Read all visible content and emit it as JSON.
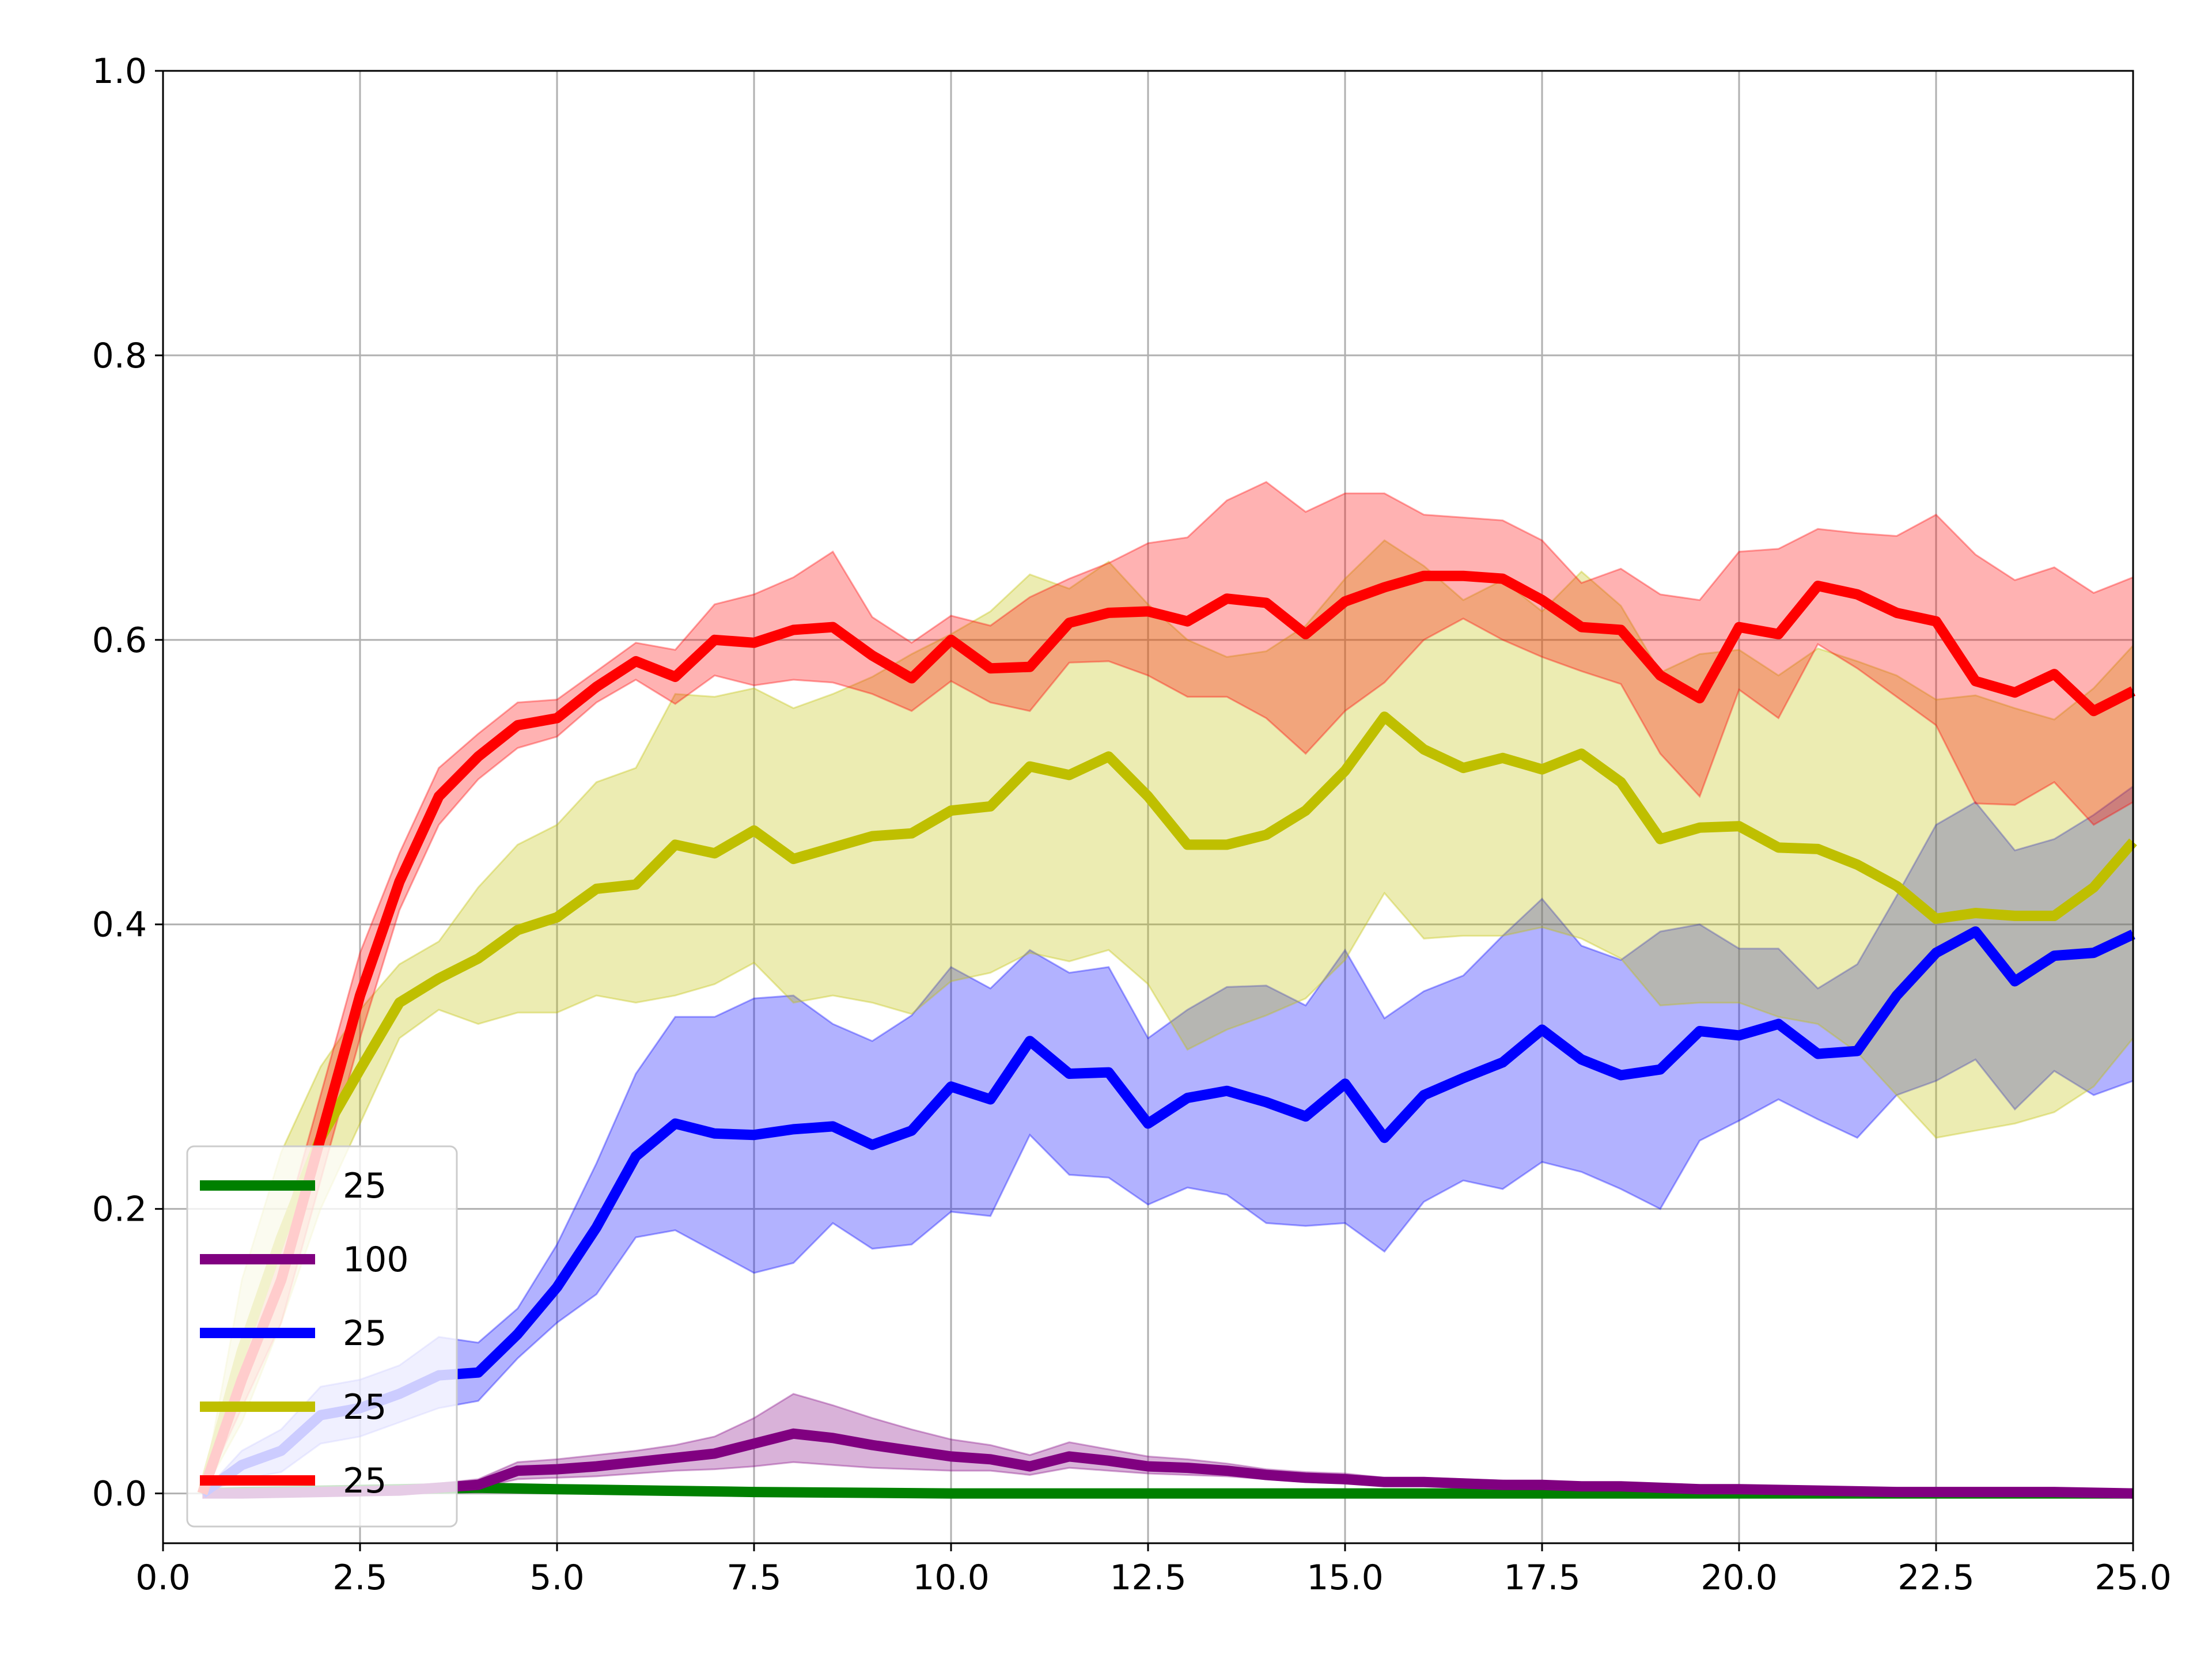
{
  "chart_data": {
    "type": "line",
    "title": "",
    "xlabel": "",
    "ylabel": "",
    "xlim": [
      0,
      25
    ],
    "ylim": [
      -0.035,
      1.0
    ],
    "xticks": [
      "0.0",
      "2.5",
      "5.0",
      "7.5",
      "10.0",
      "12.5",
      "15.0",
      "17.5",
      "20.0",
      "22.5",
      "25.0"
    ],
    "yticks": [
      "0.0",
      "0.2",
      "0.4",
      "0.6",
      "0.8",
      "1.0"
    ],
    "grid": true,
    "legend_position": "lower-left",
    "series": [
      {
        "name": "25",
        "color": "#008000",
        "x": [
          0.5,
          1,
          2,
          3,
          4,
          5,
          7.5,
          10,
          15,
          20,
          25
        ],
        "y": [
          0.0,
          0.001,
          0.002,
          0.003,
          0.004,
          0.003,
          0.001,
          0.0,
          0.0,
          0.0,
          0.0
        ],
        "lower": [
          0.0,
          0.0,
          0.001,
          0.002,
          0.003,
          0.002,
          0.0,
          0.0,
          0.0,
          0.0,
          0.0
        ],
        "upper": [
          0.001,
          0.002,
          0.003,
          0.004,
          0.005,
          0.004,
          0.002,
          0.001,
          0.0,
          0.0,
          0.0
        ]
      },
      {
        "name": "100",
        "color": "#800080",
        "x": [
          0.5,
          1,
          2,
          3,
          4,
          4.5,
          5,
          5.5,
          6,
          6.5,
          7,
          7.5,
          8,
          8.5,
          9,
          9.5,
          10,
          10.5,
          11,
          11.5,
          12,
          12.5,
          13,
          13.5,
          14,
          14.5,
          15,
          15.5,
          16,
          16.5,
          17,
          17.5,
          18,
          18.5,
          19,
          19.5,
          20,
          21,
          22,
          23,
          24,
          25
        ],
        "y": [
          0.0,
          0.0,
          0.001,
          0.002,
          0.006,
          0.016,
          0.017,
          0.019,
          0.022,
          0.025,
          0.028,
          0.035,
          0.042,
          0.039,
          0.034,
          0.03,
          0.026,
          0.024,
          0.019,
          0.026,
          0.023,
          0.019,
          0.018,
          0.016,
          0.013,
          0.011,
          0.01,
          0.008,
          0.008,
          0.007,
          0.006,
          0.006,
          0.005,
          0.005,
          0.004,
          0.003,
          0.003,
          0.002,
          0.001,
          0.001,
          0.001,
          0.0
        ],
        "lower": [
          0.0,
          0.0,
          0.0,
          0.001,
          0.004,
          0.01,
          0.011,
          0.012,
          0.014,
          0.016,
          0.017,
          0.019,
          0.022,
          0.02,
          0.018,
          0.017,
          0.016,
          0.016,
          0.013,
          0.018,
          0.016,
          0.014,
          0.013,
          0.012,
          0.01,
          0.008,
          0.007,
          0.006,
          0.006,
          0.005,
          0.005,
          0.005,
          0.004,
          0.004,
          0.003,
          0.002,
          0.002,
          0.001,
          0.001,
          0.0,
          0.0,
          0.0
        ],
        "upper": [
          0.001,
          0.001,
          0.002,
          0.004,
          0.01,
          0.022,
          0.024,
          0.027,
          0.03,
          0.034,
          0.04,
          0.053,
          0.07,
          0.062,
          0.053,
          0.045,
          0.038,
          0.034,
          0.027,
          0.036,
          0.031,
          0.026,
          0.024,
          0.021,
          0.017,
          0.015,
          0.014,
          0.011,
          0.011,
          0.01,
          0.009,
          0.008,
          0.007,
          0.007,
          0.006,
          0.005,
          0.004,
          0.003,
          0.002,
          0.002,
          0.001,
          0.001
        ]
      },
      {
        "name": "25",
        "color": "#0000ff",
        "x": [
          0.5,
          1,
          1.5,
          2,
          2.5,
          3,
          3.5,
          4,
          4.5,
          5,
          5.5,
          6,
          6.5,
          7,
          7.5,
          8,
          8.5,
          9,
          9.5,
          10,
          10.5,
          11,
          11.5,
          12,
          12.5,
          13,
          13.5,
          14,
          14.5,
          15,
          15.5,
          16,
          16.5,
          17,
          17.5,
          18,
          18.5,
          19,
          19.5,
          20,
          20.5,
          21,
          21.5,
          22,
          22.5,
          23,
          23.5,
          24,
          24.5,
          25
        ],
        "y": [
          0.0,
          0.02,
          0.03,
          0.055,
          0.06,
          0.07,
          0.083,
          0.085,
          0.112,
          0.145,
          0.187,
          0.237,
          0.26,
          0.253,
          0.252,
          0.256,
          0.258,
          0.245,
          0.255,
          0.286,
          0.277,
          0.318,
          0.295,
          0.296,
          0.26,
          0.278,
          0.283,
          0.275,
          0.265,
          0.288,
          0.25,
          0.28,
          0.292,
          0.303,
          0.326,
          0.305,
          0.294,
          0.298,
          0.325,
          0.322,
          0.33,
          0.309,
          0.311,
          0.35,
          0.38,
          0.395,
          0.36,
          0.378,
          0.38,
          0.393
        ],
        "lower": [
          0.0,
          0.01,
          0.015,
          0.035,
          0.04,
          0.05,
          0.06,
          0.065,
          0.095,
          0.12,
          0.14,
          0.18,
          0.185,
          0.17,
          0.155,
          0.162,
          0.19,
          0.172,
          0.175,
          0.198,
          0.195,
          0.252,
          0.224,
          0.222,
          0.203,
          0.215,
          0.21,
          0.19,
          0.188,
          0.19,
          0.17,
          0.205,
          0.22,
          0.214,
          0.233,
          0.226,
          0.214,
          0.2,
          0.248,
          0.262,
          0.277,
          0.263,
          0.25,
          0.28,
          0.29,
          0.305,
          0.27,
          0.297,
          0.28,
          0.29
        ],
        "upper": [
          0.0,
          0.03,
          0.045,
          0.075,
          0.08,
          0.09,
          0.11,
          0.106,
          0.13,
          0.175,
          0.232,
          0.295,
          0.335,
          0.335,
          0.348,
          0.35,
          0.33,
          0.318,
          0.336,
          0.37,
          0.355,
          0.382,
          0.366,
          0.37,
          0.32,
          0.34,
          0.356,
          0.357,
          0.343,
          0.382,
          0.334,
          0.353,
          0.364,
          0.392,
          0.418,
          0.385,
          0.375,
          0.395,
          0.4,
          0.383,
          0.383,
          0.355,
          0.372,
          0.42,
          0.47,
          0.486,
          0.452,
          0.46,
          0.477,
          0.497
        ]
      },
      {
        "name": "25",
        "color": "#bfbf00",
        "x": [
          0.5,
          1,
          1.5,
          2,
          2.5,
          3,
          3.5,
          4,
          4.5,
          5,
          5.5,
          6,
          6.5,
          7,
          7.5,
          8,
          8.5,
          9,
          9.5,
          10,
          10.5,
          11,
          11.5,
          12,
          12.5,
          13,
          13.5,
          14,
          14.5,
          15,
          15.5,
          16,
          16.5,
          17,
          17.5,
          18,
          18.5,
          19,
          19.5,
          20,
          20.5,
          21,
          21.5,
          22,
          22.5,
          23,
          23.5,
          24,
          24.5,
          25
        ],
        "y": [
          0.0,
          0.1,
          0.18,
          0.25,
          0.298,
          0.345,
          0.362,
          0.376,
          0.396,
          0.405,
          0.425,
          0.428,
          0.456,
          0.45,
          0.466,
          0.446,
          0.454,
          0.462,
          0.464,
          0.48,
          0.483,
          0.511,
          0.505,
          0.518,
          0.49,
          0.456,
          0.456,
          0.463,
          0.48,
          0.508,
          0.546,
          0.523,
          0.51,
          0.517,
          0.509,
          0.52,
          0.5,
          0.46,
          0.468,
          0.469,
          0.454,
          0.453,
          0.442,
          0.427,
          0.404,
          0.408,
          0.406,
          0.406,
          0.426,
          0.458
        ],
        "lower": [
          0.0,
          0.05,
          0.12,
          0.2,
          0.26,
          0.32,
          0.34,
          0.33,
          0.338,
          0.338,
          0.35,
          0.345,
          0.35,
          0.358,
          0.373,
          0.345,
          0.35,
          0.345,
          0.337,
          0.36,
          0.366,
          0.38,
          0.374,
          0.382,
          0.358,
          0.312,
          0.326,
          0.336,
          0.348,
          0.375,
          0.422,
          0.39,
          0.392,
          0.392,
          0.398,
          0.39,
          0.376,
          0.343,
          0.345,
          0.345,
          0.335,
          0.33,
          0.31,
          0.28,
          0.25,
          0.255,
          0.26,
          0.268,
          0.286,
          0.32
        ],
        "upper": [
          0.0,
          0.15,
          0.24,
          0.3,
          0.34,
          0.372,
          0.388,
          0.426,
          0.456,
          0.47,
          0.5,
          0.51,
          0.562,
          0.56,
          0.566,
          0.552,
          0.562,
          0.574,
          0.59,
          0.604,
          0.62,
          0.646,
          0.636,
          0.655,
          0.625,
          0.6,
          0.588,
          0.592,
          0.61,
          0.643,
          0.67,
          0.652,
          0.628,
          0.642,
          0.62,
          0.648,
          0.624,
          0.577,
          0.59,
          0.593,
          0.575,
          0.594,
          0.585,
          0.575,
          0.558,
          0.561,
          0.552,
          0.544,
          0.566,
          0.596
        ]
      },
      {
        "name": "25",
        "color": "#ff0000",
        "x": [
          0.5,
          1,
          1.5,
          2,
          2.5,
          3,
          3.5,
          4,
          4.5,
          5,
          5.5,
          6,
          6.5,
          7,
          7.5,
          8,
          8.5,
          9,
          9.5,
          10,
          10.5,
          11,
          11.5,
          12,
          12.5,
          13,
          13.5,
          14,
          14.5,
          15,
          15.5,
          16,
          16.5,
          17,
          17.5,
          18,
          18.5,
          19,
          19.5,
          20,
          20.5,
          21,
          21.5,
          22,
          22.5,
          23,
          23.5,
          24,
          24.5,
          25
        ],
        "y": [
          0.0,
          0.08,
          0.15,
          0.25,
          0.35,
          0.43,
          0.49,
          0.518,
          0.54,
          0.545,
          0.567,
          0.585,
          0.574,
          0.6,
          0.598,
          0.607,
          0.609,
          0.589,
          0.573,
          0.6,
          0.58,
          0.581,
          0.612,
          0.619,
          0.62,
          0.613,
          0.629,
          0.626,
          0.604,
          0.627,
          0.637,
          0.645,
          0.645,
          0.643,
          0.628,
          0.609,
          0.607,
          0.575,
          0.559,
          0.609,
          0.604,
          0.638,
          0.632,
          0.619,
          0.613,
          0.571,
          0.563,
          0.576,
          0.55,
          0.564
        ],
        "lower": [
          0.0,
          0.06,
          0.12,
          0.22,
          0.32,
          0.41,
          0.47,
          0.502,
          0.524,
          0.532,
          0.556,
          0.572,
          0.555,
          0.575,
          0.568,
          0.572,
          0.57,
          0.562,
          0.55,
          0.571,
          0.556,
          0.55,
          0.584,
          0.585,
          0.575,
          0.56,
          0.56,
          0.545,
          0.52,
          0.55,
          0.57,
          0.6,
          0.615,
          0.6,
          0.588,
          0.578,
          0.569,
          0.52,
          0.49,
          0.565,
          0.545,
          0.597,
          0.58,
          0.56,
          0.54,
          0.485,
          0.484,
          0.5,
          0.47,
          0.486
        ],
        "upper": [
          0.0,
          0.1,
          0.18,
          0.28,
          0.38,
          0.45,
          0.51,
          0.534,
          0.556,
          0.558,
          0.578,
          0.598,
          0.593,
          0.625,
          0.632,
          0.644,
          0.662,
          0.616,
          0.598,
          0.617,
          0.61,
          0.63,
          0.643,
          0.654,
          0.668,
          0.672,
          0.698,
          0.711,
          0.69,
          0.703,
          0.703,
          0.688,
          0.686,
          0.684,
          0.67,
          0.64,
          0.65,
          0.632,
          0.628,
          0.662,
          0.664,
          0.678,
          0.675,
          0.673,
          0.688,
          0.66,
          0.642,
          0.651,
          0.633,
          0.644
        ]
      }
    ]
  }
}
